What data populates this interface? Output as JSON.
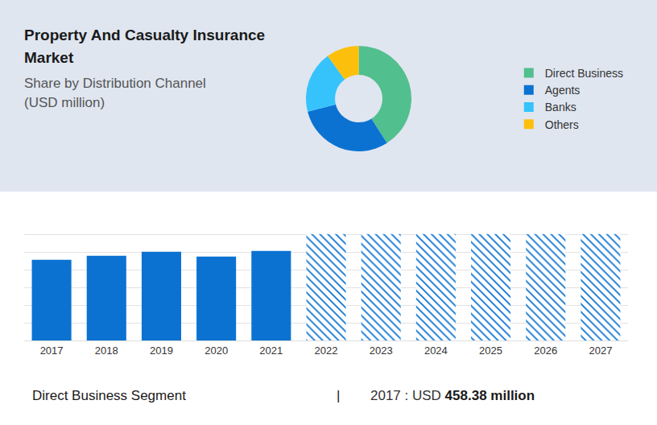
{
  "header": {
    "title": "Property And Casualty Insurance Market",
    "subtitle": "Share by Distribution Channel (USD million)"
  },
  "chart_data": [
    {
      "type": "pie",
      "categories": [
        "Direct Business",
        "Agents",
        "Banks",
        "Others"
      ],
      "values": [
        41,
        30,
        19,
        10
      ],
      "colors": [
        "#52bf8e",
        "#0b72d2",
        "#36c3fc",
        "#fcc00c"
      ],
      "legend": "right"
    },
    {
      "type": "bar",
      "categories": [
        "2017",
        "2018",
        "2019",
        "2020",
        "2021",
        "2022",
        "2023",
        "2024",
        "2025",
        "2026",
        "2027"
      ],
      "series": [
        {
          "color": "#0b72d2",
          "values": [
            458.38,
            481,
            504,
            477,
            509,
            null,
            null,
            null,
            null,
            null,
            null
          ]
        },
        {
          "color": "#0b72d2",
          "marker": "hatched",
          "values": [
            null,
            null,
            null,
            null,
            null,
            605,
            605,
            605,
            605,
            605,
            605
          ]
        }
      ],
      "ylim": [
        0,
        700
      ],
      "yticks": [
        0,
        100,
        200,
        300,
        400,
        500,
        600,
        700
      ],
      "grid": true,
      "tick_labels": "x"
    }
  ],
  "footer": {
    "label": "Direct Business Segment",
    "separator": "|",
    "note_plain": "2017 : USD",
    "note_bold": "458.38 million"
  }
}
